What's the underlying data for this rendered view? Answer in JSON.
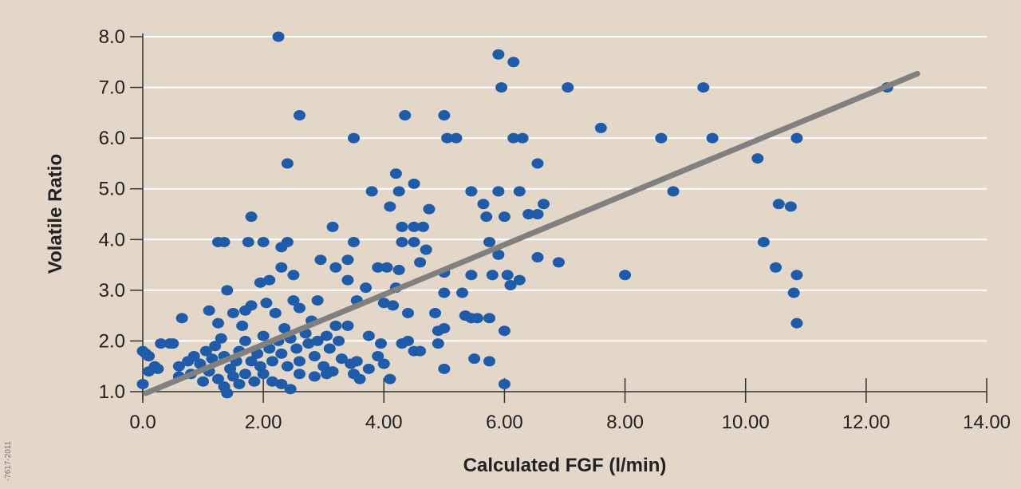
{
  "side_note": "-7617-2011",
  "chart_data": {
    "type": "scatter",
    "title": "",
    "xlabel": "Calculated FGF (l/min)",
    "ylabel": "Volatile Ratio",
    "xlim": [
      0,
      14
    ],
    "ylim": [
      1,
      8
    ],
    "x_ticks": [
      0,
      2,
      4,
      6,
      8,
      10,
      12,
      14
    ],
    "x_tick_labels": [
      "0.0",
      "2.00",
      "4.00",
      "6.00",
      "8.00",
      "10.00",
      "12.00",
      "14.00"
    ],
    "y_ticks": [
      1,
      2,
      3,
      4,
      5,
      6,
      7,
      8
    ],
    "y_tick_labels": [
      "1.0",
      "2.0",
      "3.0",
      "4.0",
      "5.0",
      "6.0",
      "7.0",
      "8.0"
    ],
    "grid": "horizontal",
    "colors": {
      "points": "#1f5ba8",
      "trendline": "#808080",
      "plot_bg": "#e2d7c9",
      "grid": "#ffffff"
    },
    "trendline": {
      "x": [
        0.05,
        12.85
      ],
      "y": [
        0.97,
        7.27
      ]
    },
    "points": [
      [
        2.25,
        8.0
      ],
      [
        5.9,
        7.65
      ],
      [
        6.15,
        7.5
      ],
      [
        5.95,
        7.0
      ],
      [
        7.05,
        7.0
      ],
      [
        9.3,
        7.0
      ],
      [
        12.35,
        7.0
      ],
      [
        2.6,
        6.45
      ],
      [
        4.35,
        6.45
      ],
      [
        5.0,
        6.45
      ],
      [
        3.5,
        6.0
      ],
      [
        5.05,
        6.0
      ],
      [
        5.2,
        6.0
      ],
      [
        6.15,
        6.0
      ],
      [
        6.3,
        6.0
      ],
      [
        7.6,
        6.2
      ],
      [
        8.6,
        6.0
      ],
      [
        9.45,
        6.0
      ],
      [
        10.85,
        6.0
      ],
      [
        10.2,
        5.6
      ],
      [
        2.4,
        5.5
      ],
      [
        6.55,
        5.5
      ],
      [
        4.2,
        5.3
      ],
      [
        3.8,
        4.95
      ],
      [
        4.25,
        4.95
      ],
      [
        4.5,
        5.1
      ],
      [
        5.45,
        4.95
      ],
      [
        5.9,
        4.95
      ],
      [
        6.25,
        4.95
      ],
      [
        8.8,
        4.95
      ],
      [
        5.65,
        4.7
      ],
      [
        10.55,
        4.7
      ],
      [
        10.75,
        4.65
      ],
      [
        6.65,
        4.7
      ],
      [
        4.1,
        4.65
      ],
      [
        4.75,
        4.6
      ],
      [
        5.7,
        4.45
      ],
      [
        6.0,
        4.45
      ],
      [
        6.4,
        4.5
      ],
      [
        6.55,
        4.5
      ],
      [
        1.8,
        4.45
      ],
      [
        3.15,
        4.25
      ],
      [
        4.3,
        4.25
      ],
      [
        4.5,
        4.25
      ],
      [
        4.65,
        4.25
      ],
      [
        1.25,
        3.95
      ],
      [
        1.35,
        3.95
      ],
      [
        1.75,
        3.95
      ],
      [
        2.0,
        3.95
      ],
      [
        2.4,
        3.95
      ],
      [
        3.5,
        3.95
      ],
      [
        4.3,
        3.95
      ],
      [
        4.5,
        3.95
      ],
      [
        5.75,
        3.95
      ],
      [
        10.3,
        3.95
      ],
      [
        2.3,
        3.85
      ],
      [
        4.7,
        3.8
      ],
      [
        5.9,
        3.7
      ],
      [
        6.55,
        3.65
      ],
      [
        6.9,
        3.55
      ],
      [
        3.4,
        3.6
      ],
      [
        4.6,
        3.55
      ],
      [
        2.95,
        3.6
      ],
      [
        2.3,
        3.45
      ],
      [
        2.5,
        3.3
      ],
      [
        3.2,
        3.45
      ],
      [
        3.9,
        3.45
      ],
      [
        4.05,
        3.45
      ],
      [
        4.25,
        3.4
      ],
      [
        10.5,
        3.45
      ],
      [
        8.0,
        3.3
      ],
      [
        10.85,
        3.3
      ],
      [
        5.0,
        3.35
      ],
      [
        5.45,
        3.3
      ],
      [
        5.8,
        3.3
      ],
      [
        6.05,
        3.3
      ],
      [
        6.25,
        3.2
      ],
      [
        6.1,
        3.1
      ],
      [
        1.95,
        3.15
      ],
      [
        2.1,
        3.2
      ],
      [
        3.4,
        3.2
      ],
      [
        3.7,
        3.05
      ],
      [
        4.2,
        3.05
      ],
      [
        1.4,
        3.0
      ],
      [
        5.0,
        2.95
      ],
      [
        5.3,
        2.95
      ],
      [
        10.8,
        2.95
      ],
      [
        1.8,
        2.7
      ],
      [
        2.05,
        2.75
      ],
      [
        2.5,
        2.8
      ],
      [
        2.9,
        2.8
      ],
      [
        3.55,
        2.8
      ],
      [
        4.0,
        2.75
      ],
      [
        4.15,
        2.7
      ],
      [
        1.5,
        2.55
      ],
      [
        1.7,
        2.6
      ],
      [
        2.2,
        2.55
      ],
      [
        2.6,
        2.65
      ],
      [
        4.4,
        2.55
      ],
      [
        4.85,
        2.55
      ],
      [
        5.35,
        2.5
      ],
      [
        5.45,
        2.45
      ],
      [
        5.55,
        2.45
      ],
      [
        5.75,
        2.45
      ],
      [
        0.65,
        2.45
      ],
      [
        1.1,
        2.6
      ],
      [
        10.85,
        2.35
      ],
      [
        1.25,
        2.35
      ],
      [
        1.65,
        2.3
      ],
      [
        2.8,
        2.4
      ],
      [
        3.2,
        2.3
      ],
      [
        3.4,
        2.3
      ],
      [
        4.9,
        2.2
      ],
      [
        6.0,
        2.2
      ],
      [
        0.3,
        1.95
      ],
      [
        0.45,
        1.95
      ],
      [
        0.5,
        1.95
      ],
      [
        3.75,
        2.1
      ],
      [
        3.95,
        1.95
      ],
      [
        4.3,
        1.95
      ],
      [
        4.4,
        2.0
      ],
      [
        4.9,
        1.95
      ],
      [
        5.0,
        2.25
      ],
      [
        4.5,
        1.8
      ],
      [
        4.6,
        1.8
      ],
      [
        5.5,
        1.65
      ],
      [
        5.75,
        1.6
      ],
      [
        4.0,
        1.55
      ],
      [
        5.0,
        1.45
      ],
      [
        6.0,
        1.15
      ],
      [
        4.1,
        1.25
      ],
      [
        0.0,
        1.8
      ],
      [
        0.05,
        1.75
      ],
      [
        0.1,
        1.7
      ],
      [
        0.2,
        1.5
      ],
      [
        0.25,
        1.45
      ],
      [
        0.1,
        1.4
      ],
      [
        0.0,
        1.15
      ],
      [
        0.6,
        1.5
      ],
      [
        0.75,
        1.6
      ],
      [
        0.85,
        1.7
      ],
      [
        0.95,
        1.55
      ],
      [
        1.05,
        1.8
      ],
      [
        1.15,
        1.65
      ],
      [
        1.2,
        1.9
      ],
      [
        1.3,
        2.05
      ],
      [
        1.35,
        1.7
      ],
      [
        1.45,
        1.45
      ],
      [
        1.55,
        1.6
      ],
      [
        1.6,
        1.8
      ],
      [
        1.7,
        2.0
      ],
      [
        1.8,
        1.6
      ],
      [
        1.9,
        1.75
      ],
      [
        1.95,
        1.5
      ],
      [
        2.0,
        2.1
      ],
      [
        2.1,
        1.85
      ],
      [
        2.15,
        1.6
      ],
      [
        2.25,
        2.0
      ],
      [
        2.3,
        1.75
      ],
      [
        2.35,
        2.25
      ],
      [
        2.4,
        1.5
      ],
      [
        2.45,
        2.05
      ],
      [
        2.55,
        1.85
      ],
      [
        2.6,
        1.6
      ],
      [
        2.7,
        2.15
      ],
      [
        2.75,
        1.95
      ],
      [
        2.85,
        1.7
      ],
      [
        2.9,
        2.0
      ],
      [
        3.0,
        1.5
      ],
      [
        3.05,
        2.1
      ],
      [
        3.1,
        1.85
      ],
      [
        3.15,
        1.4
      ],
      [
        3.25,
        2.0
      ],
      [
        3.3,
        1.65
      ],
      [
        0.6,
        1.3
      ],
      [
        0.8,
        1.35
      ],
      [
        1.0,
        1.2
      ],
      [
        1.1,
        1.4
      ],
      [
        1.25,
        1.25
      ],
      [
        1.35,
        1.1
      ],
      [
        1.4,
        0.97
      ],
      [
        1.5,
        1.3
      ],
      [
        1.6,
        1.15
      ],
      [
        1.7,
        1.35
      ],
      [
        1.85,
        1.2
      ],
      [
        2.0,
        1.35
      ],
      [
        2.15,
        1.2
      ],
      [
        2.3,
        1.15
      ],
      [
        2.45,
        1.05
      ],
      [
        2.6,
        1.35
      ],
      [
        2.85,
        1.3
      ],
      [
        3.05,
        1.35
      ],
      [
        3.5,
        1.35
      ],
      [
        3.6,
        1.25
      ],
      [
        3.75,
        1.45
      ],
      [
        3.9,
        1.7
      ],
      [
        3.55,
        1.6
      ],
      [
        3.45,
        1.55
      ]
    ]
  }
}
